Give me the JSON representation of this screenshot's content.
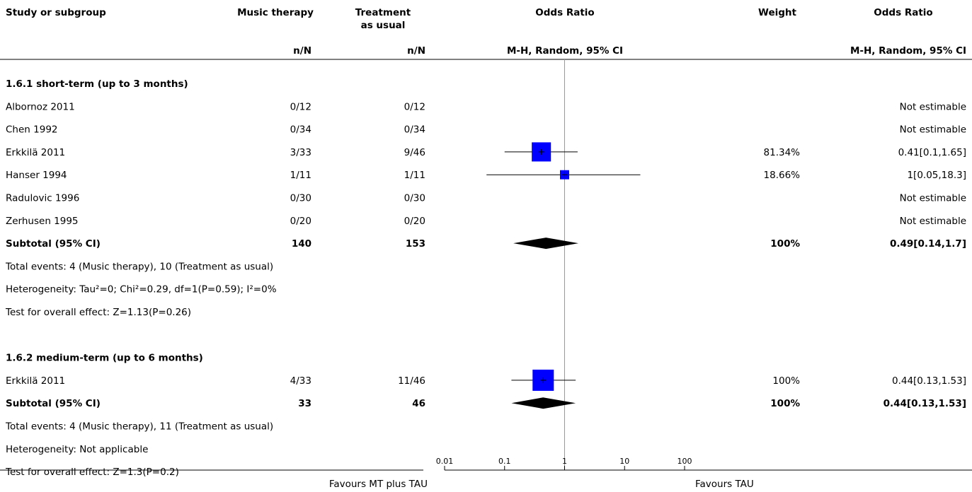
{
  "header": {
    "study": "Study or subgroup",
    "exp": "Music therapy",
    "ctrl": [
      "Treatment",
      "as usual"
    ],
    "or": "Odds Ratio",
    "weight": "Weight",
    "or_right": "Odds Ratio",
    "exp_sub": "n/N",
    "ctrl_sub": "n/N",
    "or_sub": "M-H, Random, 95% CI",
    "or_right_sub": "M-H, Random, 95% CI"
  },
  "chart_data": {
    "type": "forest",
    "xscale": "log",
    "xlim": [
      0.01,
      100
    ],
    "xticks": [
      "0.01",
      "0.1",
      "1",
      "10",
      "100"
    ],
    "favours_left": "Favours MT plus TAU",
    "favours_right": "Favours TAU",
    "rows": [
      {
        "kind": "group",
        "label": "1.6.1 short-term (up to 3 months)"
      },
      {
        "kind": "study",
        "label": "Albornoz 2011",
        "exp": "0/12",
        "ctrl": "0/12",
        "weight": "",
        "ci_text": "Not estimable"
      },
      {
        "kind": "study",
        "label": "Chen 1992",
        "exp": "0/34",
        "ctrl": "0/34",
        "weight": "",
        "ci_text": "Not estimable"
      },
      {
        "kind": "study",
        "label": "Erkkilä 2011",
        "exp": "3/33",
        "ctrl": "9/46",
        "weight": "81.34%",
        "ci_text": "0.41[0.1,1.65]",
        "or": 0.41,
        "lo": 0.1,
        "hi": 1.65,
        "w": 81.34
      },
      {
        "kind": "study",
        "label": "Hanser 1994",
        "exp": "1/11",
        "ctrl": "1/11",
        "weight": "18.66%",
        "ci_text": "1[0.05,18.3]",
        "or": 1,
        "lo": 0.05,
        "hi": 18.3,
        "w": 18.66
      },
      {
        "kind": "study",
        "label": "Radulovic 1996",
        "exp": "0/30",
        "ctrl": "0/30",
        "weight": "",
        "ci_text": "Not estimable"
      },
      {
        "kind": "study",
        "label": "Zerhusen 1995",
        "exp": "0/20",
        "ctrl": "0/20",
        "weight": "",
        "ci_text": "Not estimable"
      },
      {
        "kind": "subtotal",
        "label": "Subtotal (95% CI)",
        "exp": "140",
        "ctrl": "153",
        "weight": "100%",
        "ci_text": "0.49[0.14,1.7]",
        "or": 0.49,
        "lo": 0.14,
        "hi": 1.7
      },
      {
        "kind": "note",
        "label": "Total events: 4 (Music therapy), 10 (Treatment as usual)"
      },
      {
        "kind": "note",
        "label": "Heterogeneity: Tau²=0; Chi²=0.29, df=1(P=0.59); I²=0%"
      },
      {
        "kind": "note",
        "label": "Test for overall effect: Z=1.13(P=0.26)"
      },
      {
        "kind": "blank",
        "label": ""
      },
      {
        "kind": "group",
        "label": "1.6.2 medium-term (up to 6 months)"
      },
      {
        "kind": "study",
        "label": "Erkkilä 2011",
        "exp": "4/33",
        "ctrl": "11/46",
        "weight": "100%",
        "ci_text": "0.44[0.13,1.53]",
        "or": 0.44,
        "lo": 0.13,
        "hi": 1.53,
        "w": 100
      },
      {
        "kind": "subtotal",
        "label": "Subtotal (95% CI)",
        "exp": "33",
        "ctrl": "46",
        "weight": "100%",
        "ci_text": "0.44[0.13,1.53]",
        "or": 0.44,
        "lo": 0.13,
        "hi": 1.53
      },
      {
        "kind": "note",
        "label": "Total events: 4 (Music therapy), 11 (Treatment as usual)"
      },
      {
        "kind": "note",
        "label": "Heterogeneity: Not applicable"
      },
      {
        "kind": "note",
        "label": "Test for overall effect: Z=1.3(P=0.2)"
      }
    ]
  },
  "colors": {
    "study_box": "#0000ff",
    "diamond": "#000000",
    "line": "#000000",
    "null_line": "#999999"
  }
}
